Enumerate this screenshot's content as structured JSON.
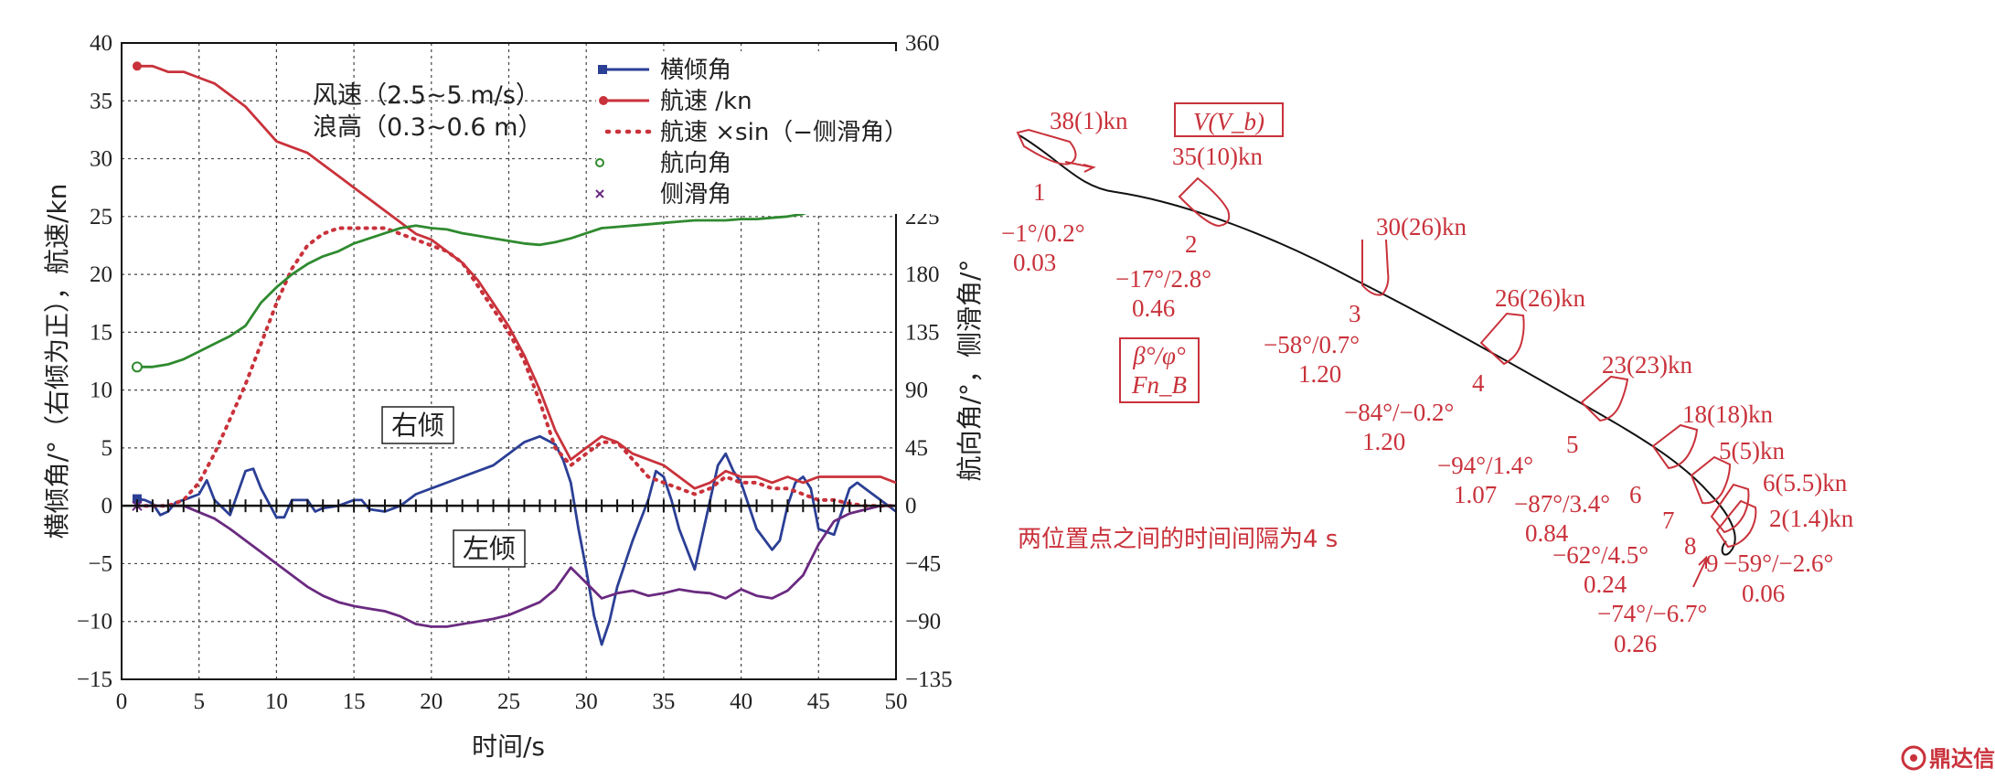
{
  "chart_data": {
    "type": "line",
    "xlabel": "时间/s",
    "ylabel_left": "横倾角/°（右倾为正），航速/kn",
    "ylabel_right": "航向角/°，侧滑角/°",
    "xlim": [
      0,
      50
    ],
    "ylim_left": [
      -15,
      40
    ],
    "ylim_right": [
      -135,
      360
    ],
    "x_ticks": [
      "0",
      "5",
      "10",
      "15",
      "20",
      "25",
      "30",
      "35",
      "40",
      "45",
      "50"
    ],
    "y_left_ticks": [
      "40",
      "35",
      "30",
      "25",
      "20",
      "15",
      "10",
      "5",
      "0",
      "−5",
      "−10",
      "−15"
    ],
    "y_right_ticks": [
      "360",
      "315",
      "270",
      "225",
      "180",
      "135",
      "90",
      "45",
      "0",
      "−45",
      "−90",
      "−135"
    ],
    "grid": true,
    "legend_position": "top-right",
    "annotations": {
      "condition_wind": "风速（2.5~5 m/s）",
      "condition_wave": "浪高（0.3~0.6 m）",
      "right_heel": "右倾",
      "left_heel": "左倾"
    },
    "series": [
      {
        "name": "横倾角",
        "axis": "left",
        "color": "#2b3f95",
        "style": "solid",
        "marker": "square",
        "x": [
          1,
          1.5,
          2,
          2.5,
          3,
          3.5,
          4,
          5,
          5.5,
          6,
          7,
          8,
          8.5,
          9,
          10,
          10.5,
          11,
          12,
          12.5,
          13,
          14,
          15,
          15.5,
          16,
          17,
          18,
          19,
          20,
          22,
          24,
          25,
          26,
          27,
          28,
          28.5,
          29,
          29.5,
          30,
          30.5,
          31,
          31.5,
          32,
          33,
          34,
          34.5,
          35,
          35.5,
          36,
          37,
          38,
          38.5,
          39,
          39.5,
          40,
          41,
          42,
          42.5,
          43,
          43.5,
          44,
          44.5,
          45,
          46,
          47,
          47.5,
          48,
          49,
          50
        ],
        "y": [
          0.6,
          0.5,
          0.2,
          -0.8,
          -0.5,
          0.3,
          0.5,
          1.0,
          2.2,
          0.5,
          -0.8,
          3.0,
          3.2,
          1.5,
          -1.0,
          -1.0,
          0.5,
          0.5,
          -0.5,
          -0.2,
          0.0,
          0.5,
          0.5,
          -0.3,
          -0.5,
          0.0,
          1.0,
          1.5,
          2.5,
          3.5,
          4.5,
          5.5,
          6.0,
          5.3,
          4.0,
          2.0,
          -2.0,
          -5.5,
          -9.5,
          -12.0,
          -10.0,
          -7.0,
          -3.0,
          0.5,
          3.0,
          2.5,
          0.5,
          -2.0,
          -5.5,
          0.5,
          3.5,
          4.5,
          3.0,
          2.0,
          -2.0,
          -3.8,
          -3.0,
          0.0,
          2.0,
          2.5,
          1.5,
          -2.0,
          -2.5,
          1.5,
          2.0,
          1.5,
          0.5,
          -0.5
        ]
      },
      {
        "name": "航速 /kn",
        "axis": "left",
        "color": "#c9323b",
        "style": "solid",
        "marker": "circle",
        "x": [
          1,
          2,
          3,
          4,
          5,
          6,
          7,
          8,
          9,
          10,
          11,
          12,
          13,
          14,
          15,
          16,
          17,
          18,
          19,
          20,
          21,
          22,
          23,
          24,
          25,
          26,
          27,
          28,
          29,
          30,
          31,
          32,
          33,
          34,
          35,
          36,
          37,
          38,
          39,
          40,
          41,
          42,
          43,
          44,
          45,
          46,
          47,
          48,
          49,
          50
        ],
        "y": [
          38.0,
          38.0,
          37.5,
          37.5,
          37.0,
          36.5,
          35.5,
          34.5,
          33.0,
          31.5,
          31.0,
          30.5,
          29.5,
          28.5,
          27.5,
          26.5,
          25.5,
          24.5,
          23.5,
          23.0,
          22.0,
          21.0,
          19.5,
          17.5,
          15.5,
          13.0,
          10.0,
          6.5,
          4.0,
          5.0,
          6.0,
          5.5,
          4.5,
          4.0,
          3.5,
          2.5,
          1.5,
          2.0,
          3.0,
          2.5,
          2.5,
          2.0,
          2.5,
          2.0,
          2.5,
          2.5,
          2.5,
          2.5,
          2.5,
          2.0
        ]
      },
      {
        "name": "航速 ×sin（−侧滑角）",
        "axis": "left",
        "color": "#c9323b",
        "style": "dotted",
        "x": [
          1,
          3,
          4,
          5,
          6,
          7,
          8,
          9,
          10,
          11,
          12,
          13,
          14,
          15,
          16,
          17,
          18,
          19,
          20,
          21,
          22,
          23,
          24,
          25,
          26,
          27,
          28,
          29,
          30,
          31,
          32,
          33,
          34,
          35,
          36,
          37,
          38,
          39,
          40,
          41,
          42,
          43,
          44,
          45,
          46,
          47,
          48,
          49,
          50
        ],
        "y": [
          0.0,
          0.0,
          0.5,
          2.0,
          4.5,
          7.5,
          10.5,
          14.0,
          17.5,
          20.5,
          22.5,
          23.5,
          24.0,
          24.0,
          24.0,
          24.0,
          23.5,
          23.0,
          22.5,
          22.0,
          21.0,
          19.0,
          17.0,
          15.0,
          12.5,
          9.0,
          5.0,
          3.5,
          4.5,
          5.5,
          5.5,
          4.0,
          2.5,
          2.0,
          1.5,
          1.0,
          1.5,
          2.5,
          2.0,
          2.0,
          1.5,
          1.5,
          1.0,
          0.5,
          0.5,
          0.2,
          0.0,
          0.0,
          0.0
        ]
      },
      {
        "name": "航向角",
        "axis": "right",
        "color": "#2f8a2f",
        "style": "solid",
        "marker": "circle-open",
        "x": [
          1,
          2,
          3,
          4,
          5,
          6,
          7,
          8,
          9,
          10,
          11,
          12,
          13,
          14,
          15,
          16,
          17,
          18,
          19,
          20,
          21,
          22,
          23,
          24,
          25,
          26,
          27,
          28,
          29,
          30,
          31,
          32,
          33,
          34,
          35,
          36,
          37,
          38,
          39,
          40,
          41,
          42,
          43,
          44,
          45,
          46,
          47,
          48,
          49,
          50
        ],
        "y": [
          108,
          108,
          110,
          114,
          120,
          126,
          132,
          140,
          158,
          170,
          180,
          188,
          194,
          198,
          204,
          208,
          212,
          216,
          218,
          216,
          215,
          212,
          210,
          208,
          206,
          204,
          203,
          205,
          208,
          212,
          216,
          217,
          218,
          219,
          220,
          221,
          222,
          222,
          222,
          223,
          223,
          224,
          225,
          227,
          232,
          240,
          248,
          256,
          264,
          270
        ]
      },
      {
        "name": "侧滑角",
        "axis": "right",
        "color": "#6a2a80",
        "style": "solid",
        "marker": "cross",
        "x": [
          1,
          2,
          3,
          4,
          5,
          6,
          7,
          8,
          9,
          10,
          11,
          12,
          13,
          14,
          15,
          16,
          17,
          18,
          19,
          20,
          21,
          22,
          23,
          24,
          25,
          26,
          27,
          28,
          29,
          30,
          31,
          32,
          33,
          34,
          35,
          36,
          37,
          38,
          39,
          40,
          41,
          42,
          43,
          44,
          45,
          46,
          47,
          48,
          49,
          50
        ],
        "y": [
          0,
          0,
          0,
          0,
          -5,
          -10,
          -18,
          -27,
          -36,
          -45,
          -54,
          -63,
          -70,
          -75,
          -78,
          -80,
          -82,
          -86,
          -92,
          -94,
          -94,
          -92,
          -90,
          -88,
          -85,
          -80,
          -75,
          -65,
          -48,
          -60,
          -72,
          -68,
          -66,
          -70,
          -68,
          -65,
          -67,
          -68,
          -72,
          -65,
          -70,
          -72,
          -66,
          -54,
          -30,
          -12,
          -6,
          -3,
          0,
          0
        ]
      }
    ]
  },
  "diagram": {
    "note": "两位置点之间的时间间隔为4 s",
    "legend_box_v": "V(V_b)",
    "legend_box_beta": "β°/φ°",
    "legend_box_fn": "Fn_B",
    "points": [
      {
        "index": "1",
        "speed": "38(1)kn",
        "angles": "−1°/0.2°",
        "fn": "0.03"
      },
      {
        "index": "2",
        "speed": "35(10)kn",
        "angles": "−17°/2.8°",
        "fn": "0.46"
      },
      {
        "index": "3",
        "speed": "30(26)kn",
        "angles": "−58°/0.7°",
        "fn": "1.20"
      },
      {
        "index": "4",
        "speed": "26(26)kn",
        "angles": "−84°/−0.2°",
        "fn": "1.20"
      },
      {
        "index": "5",
        "speed": "23(23)kn",
        "angles": "−94°/1.4°",
        "fn": "1.07"
      },
      {
        "index": "6",
        "speed": "18(18)kn",
        "angles": "−87°/3.4°",
        "fn": "0.84"
      },
      {
        "index": "7",
        "speed": "5(5)kn",
        "angles": "−62°/4.5°",
        "fn": "0.24"
      },
      {
        "index": "8",
        "speed": "6(5.5)kn",
        "angles": "−74°/−6.7°",
        "fn": "0.26"
      },
      {
        "index": "9",
        "speed": "2(1.4)kn",
        "angles": "−59°/−2.6°",
        "fn": "0.06"
      }
    ]
  },
  "watermark": "鼎达信",
  "colors": {
    "annotation_red": "#c9323b",
    "grid": "#444444",
    "axis": "#111111"
  }
}
